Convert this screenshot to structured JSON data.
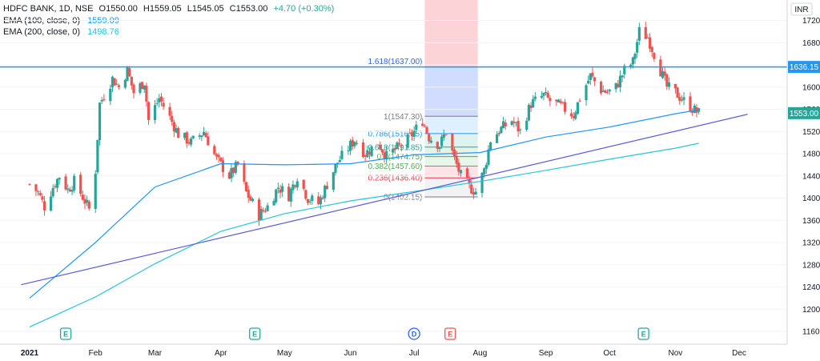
{
  "legend": {
    "symbol": "HDFC BANK, 1D, NSE",
    "open": "O1550.00",
    "high": "H1559.05",
    "low": "L1545.05",
    "close": "C1553.00",
    "change": "+4.70 (+0.30%)",
    "ema100_label": "EMA (100, close, 0)",
    "ema100_value": "1559.09",
    "ema200_label": "EMA (200, close, 0)",
    "ema200_value": "1498.76"
  },
  "currency": "INR",
  "colors": {
    "up": "#26a69a",
    "down": "#ef5350",
    "ema100": "#2196f3",
    "ema200": "#26c6da",
    "trendline": "#5b5bd6",
    "hline": "#2196f3",
    "badge_e": "#26a69a",
    "badge_d": "#2962ff",
    "badge_e_red": "#ef5350"
  },
  "chart_data": {
    "type": "candlestick",
    "title": "HDFC BANK, 1D, NSE",
    "ylim": [
      1130,
      1750
    ],
    "y_ticks": [
      1160,
      1200,
      1240,
      1280,
      1320,
      1360,
      1400,
      1440,
      1480,
      1520,
      1560,
      1600,
      1640,
      1680,
      1720
    ],
    "x_ticks": [
      "2021",
      "Feb",
      "Mar",
      "Apr",
      "May",
      "Jun",
      "Jul",
      "Aug",
      "Sep",
      "Oct",
      "Nov",
      "Dec"
    ],
    "price_labels": {
      "hline": "1636.15",
      "last": "1553.00"
    },
    "close_path": [
      [
        "2021-01-01",
        1425
      ],
      [
        "2021-01-05",
        1410
      ],
      [
        "2021-01-08",
        1385
      ],
      [
        "2021-01-12",
        1420
      ],
      [
        "2021-01-15",
        1440
      ],
      [
        "2021-01-19",
        1415
      ],
      [
        "2021-01-22",
        1430
      ],
      [
        "2021-01-27",
        1395
      ],
      [
        "2021-01-29",
        1380
      ],
      [
        "2021-02-01",
        1450
      ],
      [
        "2021-02-03",
        1570
      ],
      [
        "2021-02-05",
        1585
      ],
      [
        "2021-02-09",
        1615
      ],
      [
        "2021-02-12",
        1600
      ],
      [
        "2021-02-16",
        1630
      ],
      [
        "2021-02-19",
        1590
      ],
      [
        "2021-02-24",
        1610
      ],
      [
        "2021-02-26",
        1540
      ],
      [
        "2021-03-03",
        1580
      ],
      [
        "2021-03-08",
        1545
      ],
      [
        "2021-03-12",
        1515
      ],
      [
        "2021-03-18",
        1500
      ],
      [
        "2021-03-24",
        1520
      ],
      [
        "2021-03-30",
        1470
      ],
      [
        "2021-04-05",
        1440
      ],
      [
        "2021-04-09",
        1460
      ],
      [
        "2021-04-13",
        1410
      ],
      [
        "2021-04-19",
        1370
      ],
      [
        "2021-04-23",
        1385
      ],
      [
        "2021-04-28",
        1420
      ],
      [
        "2021-05-03",
        1405
      ],
      [
        "2021-05-07",
        1440
      ],
      [
        "2021-05-12",
        1400
      ],
      [
        "2021-05-17",
        1390
      ],
      [
        "2021-05-21",
        1425
      ],
      [
        "2021-05-26",
        1465
      ],
      [
        "2021-05-31",
        1490
      ],
      [
        "2021-06-03",
        1505
      ],
      [
        "2021-06-08",
        1480
      ],
      [
        "2021-06-14",
        1500
      ],
      [
        "2021-06-18",
        1475
      ],
      [
        "2021-06-23",
        1490
      ],
      [
        "2021-06-28",
        1505
      ],
      [
        "2021-07-02",
        1525
      ],
      [
        "2021-07-05",
        1540
      ],
      [
        "2021-07-08",
        1510
      ],
      [
        "2021-07-13",
        1495
      ],
      [
        "2021-07-16",
        1520
      ],
      [
        "2021-07-20",
        1470
      ],
      [
        "2021-07-23",
        1440
      ],
      [
        "2021-07-27",
        1420
      ],
      [
        "2021-07-30",
        1412
      ],
      [
        "2021-08-03",
        1450
      ],
      [
        "2021-08-06",
        1505
      ],
      [
        "2021-08-11",
        1525
      ],
      [
        "2021-08-16",
        1540
      ],
      [
        "2021-08-20",
        1520
      ],
      [
        "2021-08-25",
        1570
      ],
      [
        "2021-08-31",
        1585
      ],
      [
        "2021-09-03",
        1575
      ],
      [
        "2021-09-08",
        1565
      ],
      [
        "2021-09-14",
        1550
      ],
      [
        "2021-09-17",
        1580
      ],
      [
        "2021-09-22",
        1620
      ],
      [
        "2021-09-27",
        1595
      ],
      [
        "2021-09-30",
        1590
      ],
      [
        "2021-10-04",
        1600
      ],
      [
        "2021-10-08",
        1630
      ],
      [
        "2021-10-12",
        1645
      ],
      [
        "2021-10-15",
        1700
      ],
      [
        "2021-10-19",
        1690
      ],
      [
        "2021-10-22",
        1660
      ],
      [
        "2021-10-25",
        1630
      ],
      [
        "2021-10-28",
        1600
      ],
      [
        "2021-11-01",
        1590
      ],
      [
        "2021-11-05",
        1575
      ],
      [
        "2021-11-10",
        1558
      ],
      [
        "2021-11-12",
        1553
      ]
    ],
    "ema100": [
      [
        "2021-01-01",
        1220
      ],
      [
        "2021-02-01",
        1320
      ],
      [
        "2021-03-01",
        1420
      ],
      [
        "2021-04-01",
        1462
      ],
      [
        "2021-05-01",
        1460
      ],
      [
        "2021-06-01",
        1462
      ],
      [
        "2021-07-01",
        1478
      ],
      [
        "2021-08-01",
        1482
      ],
      [
        "2021-09-01",
        1510
      ],
      [
        "2021-10-01",
        1528
      ],
      [
        "2021-11-01",
        1552
      ],
      [
        "2021-11-12",
        1559.09
      ]
    ],
    "ema200": [
      [
        "2021-01-01",
        1168
      ],
      [
        "2021-02-01",
        1222
      ],
      [
        "2021-03-01",
        1282
      ],
      [
        "2021-04-01",
        1340
      ],
      [
        "2021-05-01",
        1372
      ],
      [
        "2021-06-01",
        1395
      ],
      [
        "2021-07-01",
        1412
      ],
      [
        "2021-08-01",
        1430
      ],
      [
        "2021-09-01",
        1450
      ],
      [
        "2021-10-01",
        1470
      ],
      [
        "2021-11-01",
        1490
      ],
      [
        "2021-11-12",
        1498.76
      ]
    ],
    "trendline": [
      [
        "2020-12-28",
        1244
      ],
      [
        "2021-12-05",
        1551
      ]
    ],
    "hline": {
      "price": 1636.15
    },
    "fib": {
      "extension_label": "1.618(1637.00)",
      "extension_price": 1637.0,
      "date_range": [
        "2021-07-06",
        "2021-07-31"
      ],
      "levels": [
        {
          "label": "1(1547.30)",
          "price": 1547.3,
          "color": "#787b86"
        },
        {
          "label": "0.786(1516.25)",
          "price": 1516.25,
          "color": "#2196f3"
        },
        {
          "label": "0.618(1491.85)",
          "price": 1491.85,
          "color": "#26a69a"
        },
        {
          "label": "0.5(1474.75)",
          "price": 1474.75,
          "color": "#4caf50"
        },
        {
          "label": "0.382(1457.60)",
          "price": 1457.6,
          "color": "#4caf50"
        },
        {
          "label": "0.236(1436.40)",
          "price": 1436.4,
          "color": "#f23645"
        },
        {
          "label": "0(1402.15)",
          "price": 1402.15,
          "color": "#787b86"
        }
      ]
    },
    "events": [
      {
        "date": "2021-01-18",
        "label": "E",
        "kind": "e"
      },
      {
        "date": "2021-04-17",
        "label": "E",
        "kind": "e"
      },
      {
        "date": "2021-07-01",
        "label": "D",
        "kind": "d"
      },
      {
        "date": "2021-07-18",
        "label": "E",
        "kind": "e-red"
      },
      {
        "date": "2021-10-17",
        "label": "E",
        "kind": "e"
      }
    ]
  }
}
